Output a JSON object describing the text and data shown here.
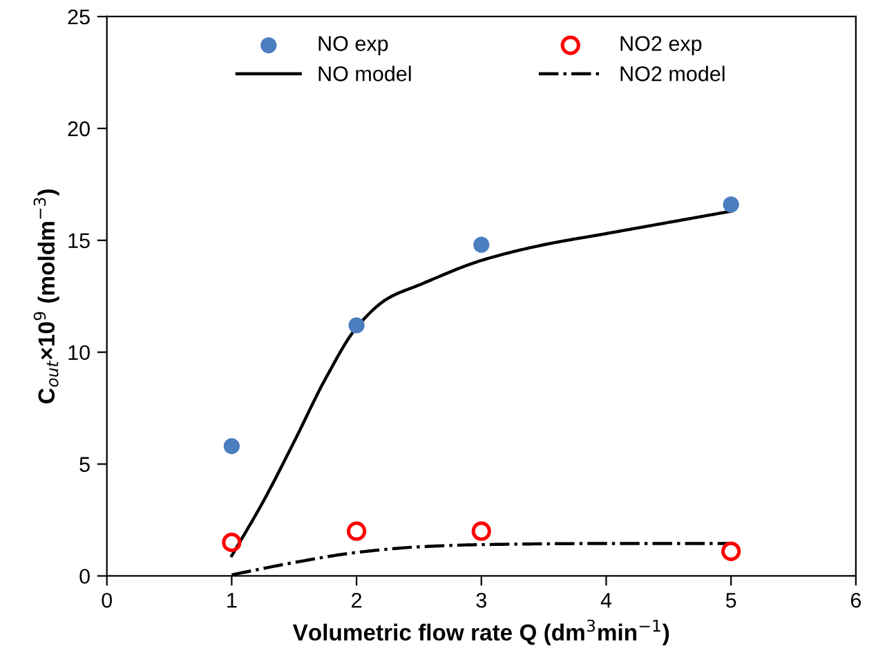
{
  "chart_data": {
    "type": "scatter",
    "xlabel": "Volumetric flow rate Q (dm$^{3}$min$^{−1}$)",
    "ylabel": "C$_{out}$×10$^{9}$ (moldm$^{−3}$)",
    "xlim": [
      0,
      6
    ],
    "xticks": [
      0,
      1,
      2,
      3,
      4,
      5,
      6
    ],
    "ylim": [
      0,
      25
    ],
    "yticks": [
      0,
      5,
      10,
      15,
      20,
      25
    ],
    "grid": false,
    "legend": "top",
    "series": [
      {
        "name": "NO exp",
        "marker": "circle",
        "color": "#4a7ebf",
        "x": [
          1,
          2,
          3,
          5
        ],
        "values": [
          5.8,
          11.2,
          14.8,
          16.6
        ]
      },
      {
        "name": "NO2 exp",
        "marker": "circle",
        "color": "#ff0000",
        "x": [
          1,
          2,
          3,
          5
        ],
        "values": [
          1.5,
          2.0,
          2.0,
          1.1
        ]
      },
      {
        "name": "NO model",
        "type": "line",
        "line_style": "solid",
        "color": "#000000",
        "x": [
          1,
          1.25,
          1.5,
          1.75,
          2,
          2.25,
          2.5,
          3,
          3.5,
          4,
          4.5,
          5
        ],
        "values": [
          0.9,
          3.3,
          6.0,
          8.8,
          11.1,
          12.4,
          13.0,
          14.1,
          14.8,
          15.3,
          15.8,
          16.3
        ]
      },
      {
        "name": "NO2 model",
        "type": "line",
        "line_style": "dashdot",
        "color": "#000000",
        "x": [
          1,
          1.5,
          2,
          2.5,
          3,
          4,
          5
        ],
        "values": [
          0.05,
          0.6,
          1.05,
          1.3,
          1.4,
          1.45,
          1.45
        ]
      }
    ]
  }
}
